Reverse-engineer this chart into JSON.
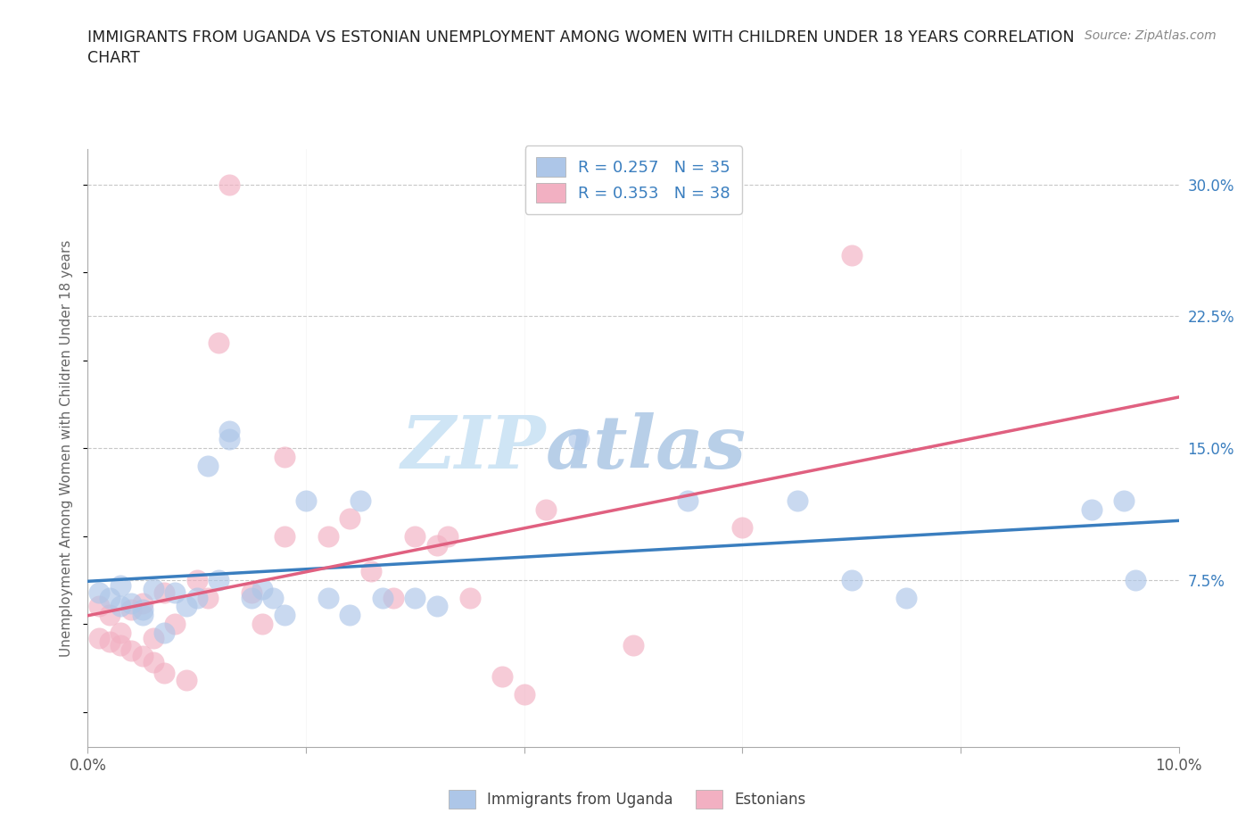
{
  "title_line1": "IMMIGRANTS FROM UGANDA VS ESTONIAN UNEMPLOYMENT AMONG WOMEN WITH CHILDREN UNDER 18 YEARS CORRELATION",
  "title_line2": "CHART",
  "source": "Source: ZipAtlas.com",
  "ylabel": "Unemployment Among Women with Children Under 18 years",
  "xlim": [
    0.0,
    0.1
  ],
  "ylim": [
    -0.02,
    0.32
  ],
  "xticks": [
    0.0,
    0.02,
    0.04,
    0.06,
    0.08,
    0.1
  ],
  "xticklabels": [
    "0.0%",
    "",
    "",
    "",
    "",
    "10.0%"
  ],
  "yticks_right": [
    0.075,
    0.15,
    0.225,
    0.3
  ],
  "yticklabels_right": [
    "7.5%",
    "15.0%",
    "22.5%",
    "30.0%"
  ],
  "background_color": "#ffffff",
  "grid_color": "#c8c8c8",
  "uganda_color": "#adc6e8",
  "estonian_color": "#f2b0c2",
  "uganda_line_color": "#3a7ebf",
  "estonian_line_color": "#e06080",
  "text_color": "#3a7ebf",
  "uganda_R": 0.257,
  "uganda_N": 35,
  "estonian_R": 0.353,
  "estonian_N": 38,
  "uganda_scatter_x": [
    0.001,
    0.002,
    0.003,
    0.003,
    0.004,
    0.005,
    0.005,
    0.006,
    0.007,
    0.008,
    0.009,
    0.01,
    0.011,
    0.012,
    0.013,
    0.013,
    0.015,
    0.016,
    0.017,
    0.018,
    0.02,
    0.022,
    0.024,
    0.025,
    0.027,
    0.03,
    0.032,
    0.045,
    0.055,
    0.065,
    0.07,
    0.075,
    0.092,
    0.095,
    0.096
  ],
  "uganda_scatter_y": [
    0.068,
    0.065,
    0.06,
    0.072,
    0.062,
    0.058,
    0.055,
    0.07,
    0.045,
    0.068,
    0.06,
    0.065,
    0.14,
    0.075,
    0.155,
    0.16,
    0.065,
    0.07,
    0.065,
    0.055,
    0.12,
    0.065,
    0.055,
    0.12,
    0.065,
    0.065,
    0.06,
    0.155,
    0.12,
    0.12,
    0.075,
    0.065,
    0.115,
    0.12,
    0.075
  ],
  "estonian_scatter_x": [
    0.001,
    0.001,
    0.002,
    0.002,
    0.003,
    0.003,
    0.004,
    0.004,
    0.005,
    0.005,
    0.006,
    0.006,
    0.007,
    0.007,
    0.008,
    0.009,
    0.01,
    0.011,
    0.012,
    0.013,
    0.015,
    0.016,
    0.018,
    0.018,
    0.022,
    0.024,
    0.026,
    0.028,
    0.03,
    0.032,
    0.033,
    0.035,
    0.04,
    0.042,
    0.05,
    0.06,
    0.07,
    0.038
  ],
  "estonian_scatter_y": [
    0.06,
    0.042,
    0.055,
    0.04,
    0.045,
    0.038,
    0.058,
    0.035,
    0.062,
    0.032,
    0.042,
    0.028,
    0.068,
    0.022,
    0.05,
    0.018,
    0.075,
    0.065,
    0.21,
    0.3,
    0.068,
    0.05,
    0.1,
    0.145,
    0.1,
    0.11,
    0.08,
    0.065,
    0.1,
    0.095,
    0.1,
    0.065,
    0.01,
    0.115,
    0.038,
    0.105,
    0.26,
    0.02
  ],
  "watermark_zip": "ZIP",
  "watermark_atlas": "atlas",
  "watermark_color_zip": "#cfe5f5",
  "watermark_color_atlas": "#b8cfe8"
}
